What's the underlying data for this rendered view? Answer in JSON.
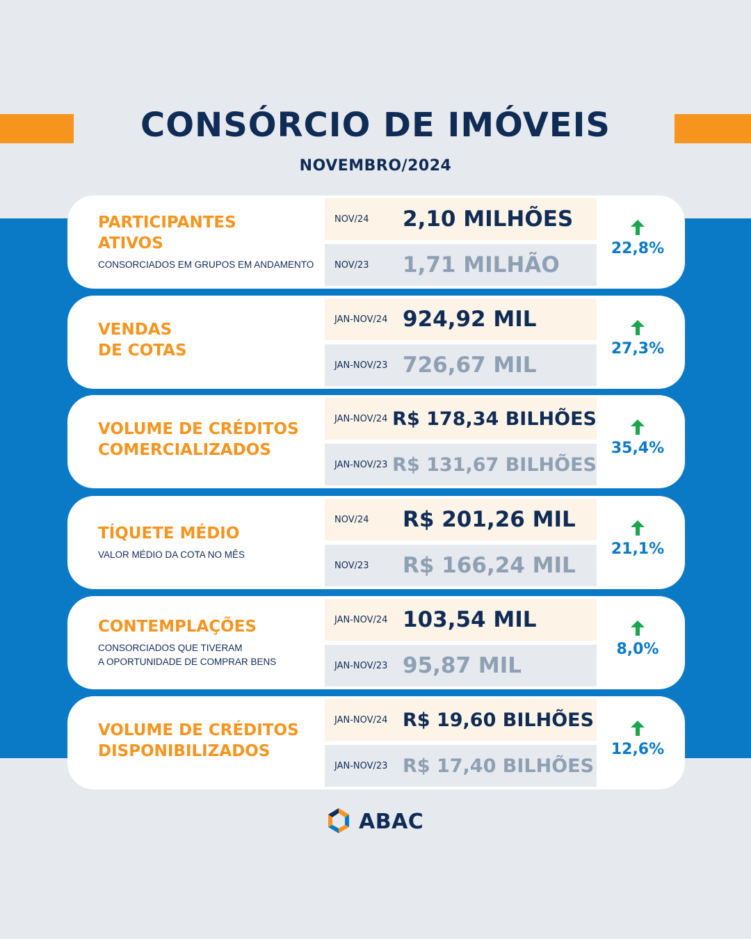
{
  "header": {
    "title": "CONSÓRCIO DE IMÓVEIS",
    "subtitle": "NOVEMBRO/2024"
  },
  "colors": {
    "orange": "#f7941d",
    "navy": "#0f2c56",
    "blue": "#0b7ac6",
    "green_arrow": "#1aa64b",
    "muted": "#8ea0b3"
  },
  "cards": [
    {
      "title": "PARTICIPANTES\nATIVOS",
      "description": "CONSORCIADOS EM GRUPOS EM ANDAMENTO",
      "current": {
        "period": "NOV/24",
        "value": "2,10 MILHÕES"
      },
      "previous": {
        "period": "NOV/23",
        "value": "1,71 MILHÃO"
      },
      "change": "22,8%",
      "arrow_icon": "arrow-up-icon"
    },
    {
      "title": "VENDAS\nDE COTAS",
      "description": "",
      "current": {
        "period": "JAN-NOV/24",
        "value": "924,92 MIL"
      },
      "previous": {
        "period": "JAN-NOV/23",
        "value": "726,67 MIL"
      },
      "change": "27,3%",
      "arrow_icon": "arrow-up-icon"
    },
    {
      "title": "VOLUME DE CRÉDITOS\nCOMERCIALIZADOS",
      "description": "",
      "current": {
        "period": "JAN-NOV/24",
        "value": "R$ 178,34 BILHÕES"
      },
      "previous": {
        "period": "JAN-NOV/23",
        "value": "R$ 131,67 BILHÕES"
      },
      "change": "35,4%",
      "arrow_icon": "arrow-up-icon"
    },
    {
      "title": "TÍQUETE MÉDIO",
      "description": "VALOR MÉDIO DA COTA NO MÊS",
      "current": {
        "period": "NOV/24",
        "value": "R$ 201,26 MIL"
      },
      "previous": {
        "period": "NOV/23",
        "value": "R$ 166,24 MIL"
      },
      "change": "21,1%",
      "arrow_icon": "arrow-up-icon"
    },
    {
      "title": "CONTEMPLAÇÕES",
      "description": "CONSORCIADOS QUE TIVERAM\nA OPORTUNIDADE DE COMPRAR BENS",
      "current": {
        "period": "JAN-NOV/24",
        "value": "103,54 MIL"
      },
      "previous": {
        "period": "JAN-NOV/23",
        "value": "95,87 MIL"
      },
      "change": "8,0%",
      "arrow_icon": "arrow-up-icon"
    },
    {
      "title": "VOLUME DE CRÉDITOS\nDISPONIBILIZADOS",
      "description": "",
      "current": {
        "period": "JAN-NOV/24",
        "value": "R$ 19,60 BILHÕES"
      },
      "previous": {
        "period": "JAN-NOV/23",
        "value": "R$ 17,40 BILHÕES"
      },
      "change": "12,6%",
      "arrow_icon": "arrow-up-icon"
    }
  ],
  "footer": {
    "logo_text": "ABAC",
    "logo_icon": "abac-logo-icon"
  }
}
